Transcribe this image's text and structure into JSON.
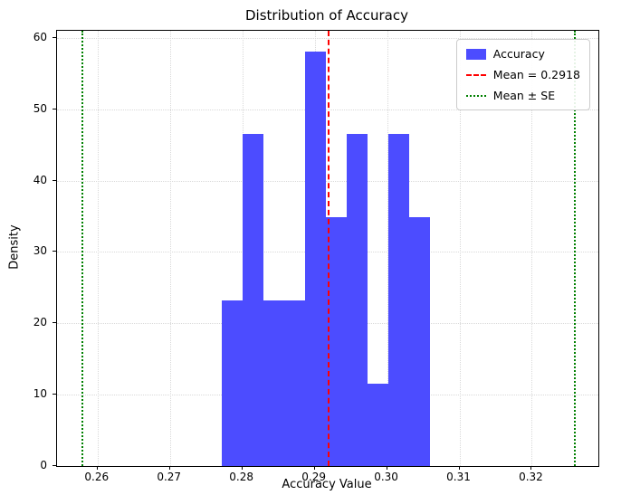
{
  "chart_data": {
    "type": "bar",
    "subtype": "histogram",
    "title": "Distribution of Accuracy",
    "xlabel": "Accuracy Value",
    "ylabel": "Density",
    "xlim": [
      0.2544,
      0.3292
    ],
    "ylim": [
      0,
      61
    ],
    "x_ticks": [
      0.26,
      0.27,
      0.28,
      0.29,
      0.3,
      0.31,
      0.32
    ],
    "x_tick_labels": [
      "0.26",
      "0.27",
      "0.28",
      "0.29",
      "0.30",
      "0.31",
      "0.32"
    ],
    "y_ticks": [
      0,
      10,
      20,
      30,
      40,
      50,
      60
    ],
    "y_tick_labels": [
      "0",
      "10",
      "20",
      "30",
      "40",
      "50",
      "60"
    ],
    "grid": true,
    "grid_color": "#d9d9d9",
    "bar_color": "#4c4cff",
    "bins": {
      "edges": [
        0.2772,
        0.28007,
        0.28294,
        0.28581,
        0.28868,
        0.29155,
        0.29442,
        0.29729,
        0.30016,
        0.30303,
        0.3059
      ],
      "densities": [
        23.2,
        46.5,
        23.2,
        23.2,
        58.1,
        34.9,
        46.5,
        11.6,
        46.5,
        34.9
      ]
    },
    "mean_line": {
      "x": 0.2918,
      "color": "#ff0000",
      "style": "dashed"
    },
    "se_lines": {
      "x": [
        0.2578,
        0.3258
      ],
      "color": "#008000",
      "style": "dotted"
    },
    "legend": {
      "position": "upper-right",
      "items": [
        {
          "label": "Accuracy",
          "handle": "patch",
          "color": "#4c4cff"
        },
        {
          "label": "Mean = 0.2918",
          "handle": "line",
          "style": "dashed",
          "color": "#ff0000"
        },
        {
          "label": "Mean ± SE",
          "handle": "line",
          "style": "dotted",
          "color": "#008000"
        }
      ]
    }
  }
}
